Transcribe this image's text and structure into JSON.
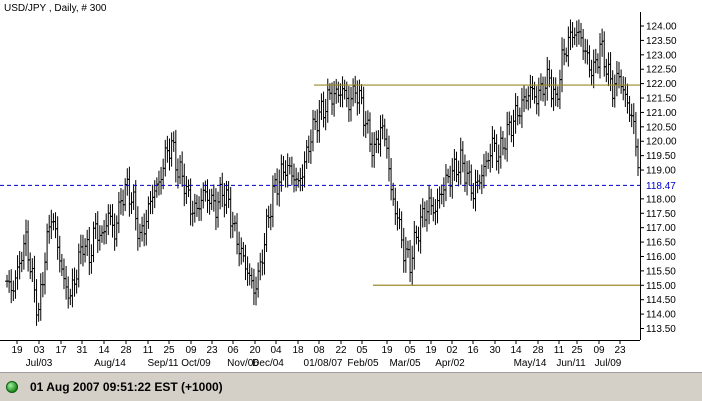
{
  "chart_title": "USD/JPY , Daily, # 300",
  "status": {
    "datetime": "01 Aug 2007 09:51:22",
    "timezone": "EST (+1000)"
  },
  "colors": {
    "plot_bg": "#ffffff",
    "bars": "#000000",
    "support_resistance": "#9b8a2a",
    "current_level": "#0000cc",
    "status_ok": "#1e8a1e"
  },
  "chart_data": {
    "type": "ohlc",
    "title": "USD/JPY , Daily, # 300",
    "ylim": [
      113.2,
      124.3
    ],
    "y_ticks": [
      113.5,
      114.0,
      114.5,
      115.0,
      115.5,
      116.0,
      116.5,
      117.0,
      117.5,
      118.0,
      118.5,
      119.0,
      119.5,
      120.0,
      120.5,
      121.0,
      121.5,
      122.0,
      122.5,
      123.0,
      123.5,
      124.0
    ],
    "y_tick_labels": [
      "113.50",
      "114.00",
      "114.50",
      "115.00",
      "115.50",
      "116.00",
      "116.50",
      "117.00",
      "117.50",
      "118.00",
      "118.50",
      "119.00",
      "119.50",
      "120.00",
      "120.50",
      "121.00",
      "121.50",
      "122.00",
      "122.50",
      "123.00",
      "123.50",
      "124.00"
    ],
    "x_day_labels": [
      "19",
      "03",
      "17",
      "31",
      "14",
      "28",
      "11",
      "25",
      "09",
      "23",
      "06",
      "20",
      "04",
      "18",
      "08",
      "22",
      "05",
      "19",
      "05",
      "19",
      "02",
      "16",
      "30",
      "14",
      "28",
      "11",
      "25",
      "09",
      "23"
    ],
    "x_month_labels": [
      "Jul/03",
      "Aug/14",
      "Sep/11",
      "Oct/09",
      "Nov/06",
      "Dec/04",
      "01/08/07",
      "Feb/05",
      "Mar/05",
      "Apr/02",
      "May/14",
      "Jun/11",
      "Jul/09"
    ],
    "current_price": 118.47,
    "current_price_label": "118.47",
    "horizontal_lines": [
      {
        "name": "resistance",
        "value": 121.95
      },
      {
        "name": "support",
        "value": 115.0
      }
    ],
    "keypoints": [
      [
        0,
        115.0
      ],
      [
        3,
        114.9
      ],
      [
        6,
        115.8
      ],
      [
        9,
        116.6
      ],
      [
        12,
        115.2
      ],
      [
        15,
        114.0
      ],
      [
        18,
        116.0
      ],
      [
        21,
        117.5
      ],
      [
        24,
        116.4
      ],
      [
        27,
        115.1
      ],
      [
        30,
        114.6
      ],
      [
        33,
        115.5
      ],
      [
        36,
        116.5
      ],
      [
        39,
        116.0
      ],
      [
        42,
        117.0
      ],
      [
        45,
        116.6
      ],
      [
        48,
        117.5
      ],
      [
        51,
        116.8
      ],
      [
        54,
        118.0
      ],
      [
        57,
        118.4
      ],
      [
        60,
        117.8
      ],
      [
        63,
        116.6
      ],
      [
        66,
        117.3
      ],
      [
        69,
        118.2
      ],
      [
        72,
        118.5
      ],
      [
        75,
        119.5
      ],
      [
        78,
        119.9
      ],
      [
        81,
        119.0
      ],
      [
        84,
        118.6
      ],
      [
        87,
        117.7
      ],
      [
        90,
        117.6
      ],
      [
        93,
        118.2
      ],
      [
        96,
        118.0
      ],
      [
        99,
        117.7
      ],
      [
        102,
        118.3
      ],
      [
        105,
        117.8
      ],
      [
        108,
        116.8
      ],
      [
        111,
        116.1
      ],
      [
        114,
        115.5
      ],
      [
        117,
        114.8
      ],
      [
        120,
        115.6
      ],
      [
        123,
        117.0
      ],
      [
        126,
        118.2
      ],
      [
        129,
        118.7
      ],
      [
        132,
        119.1
      ],
      [
        135,
        118.9
      ],
      [
        138,
        118.5
      ],
      [
        141,
        119.2
      ],
      [
        144,
        120.2
      ],
      [
        147,
        120.8
      ],
      [
        150,
        121.1
      ],
      [
        153,
        121.6
      ],
      [
        156,
        121.6
      ],
      [
        159,
        121.8
      ],
      [
        162,
        121.3
      ],
      [
        165,
        121.8
      ],
      [
        168,
        121.3
      ],
      [
        171,
        120.3
      ],
      [
        174,
        119.6
      ],
      [
        177,
        120.5
      ],
      [
        180,
        119.9
      ],
      [
        182,
        118.2
      ],
      [
        185,
        117.4
      ],
      [
        188,
        116.2
      ],
      [
        191,
        115.8
      ],
      [
        194,
        116.7
      ],
      [
        197,
        117.4
      ],
      [
        200,
        117.8
      ],
      [
        203,
        117.6
      ],
      [
        206,
        118.3
      ],
      [
        209,
        118.7
      ],
      [
        212,
        119.0
      ],
      [
        215,
        119.3
      ],
      [
        218,
        118.8
      ],
      [
        221,
        118.2
      ],
      [
        224,
        118.7
      ],
      [
        227,
        119.2
      ],
      [
        230,
        119.9
      ],
      [
        233,
        119.5
      ],
      [
        236,
        120.1
      ],
      [
        239,
        120.6
      ],
      [
        242,
        121.0
      ],
      [
        245,
        121.4
      ],
      [
        248,
        121.8
      ],
      [
        251,
        121.5
      ],
      [
        254,
        121.9
      ],
      [
        257,
        122.2
      ],
      [
        260,
        121.3
      ],
      [
        263,
        122.8
      ],
      [
        266,
        123.5
      ],
      [
        269,
        123.8
      ],
      [
        272,
        123.6
      ],
      [
        275,
        122.8
      ],
      [
        278,
        122.4
      ],
      [
        281,
        123.3
      ],
      [
        284,
        122.6
      ],
      [
        287,
        121.8
      ],
      [
        290,
        122.3
      ],
      [
        293,
        121.5
      ],
      [
        296,
        120.9
      ],
      [
        299,
        119.4
      ]
    ]
  }
}
